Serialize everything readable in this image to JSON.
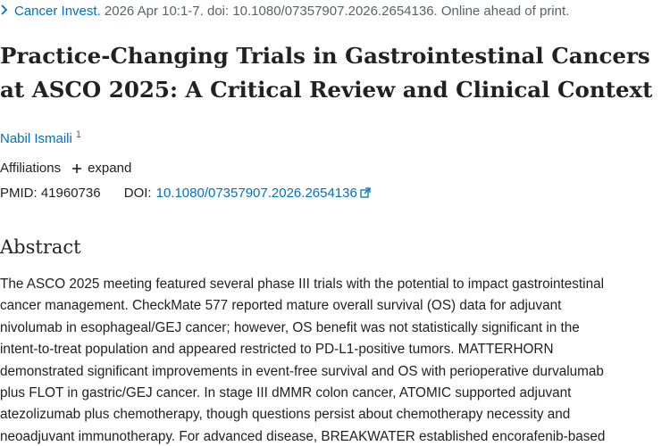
{
  "citation": {
    "journal": "Cancer Invest.",
    "details": "2026 Apr 10:1-7. doi: 10.1080/07357907.2026.2654136. Online ahead of print.",
    "chevron_icon": "chevron-right-icon"
  },
  "article": {
    "title": "Practice-Changing Trials in Gastrointestinal Cancers at ASCO 2025: A Critical Review and Clinical Context"
  },
  "authors": [
    {
      "name": "Nabil Ismaili",
      "affiliation_ref": "1"
    }
  ],
  "affiliations": {
    "label": "Affiliations",
    "expand_icon": "plus-icon",
    "expand_label": "expand"
  },
  "identifiers": {
    "pmid_label": "PMID:",
    "pmid": "41960736",
    "doi_label": "DOI:",
    "doi": "10.1080/07357907.2026.2654136",
    "doi_icon": "external-link-icon"
  },
  "abstract": {
    "heading": "Abstract",
    "lines": [
      "The ASCO 2025 meeting featured several phase III trials with the potential to impact gastrointestinal",
      "cancer management. CheckMate 577 reported mature overall survival (OS) data for adjuvant",
      "nivolumab in esophageal/GEJ cancer; however, OS benefit was not statistically significant in the",
      "intent-to-treat population and appeared restricted to PD-L1-positive tumors. MATTERHORN",
      "demonstrated significant improvements in event-free survival and OS with perioperative durvalumab",
      "plus FLOT in gastric/GEJ cancer. In stage III dMMR colon cancer, ATOMIC supported adjuvant",
      "atezolizumab plus chemotherapy, though questions persist about chemotherapy necessity and",
      "neoadjuvant immunotherapy. For advanced disease, BREAKWATER established encorafenib-based"
    ]
  },
  "colors": {
    "link": "#0071bc",
    "text": "#212121",
    "muted": "#5b616b"
  }
}
